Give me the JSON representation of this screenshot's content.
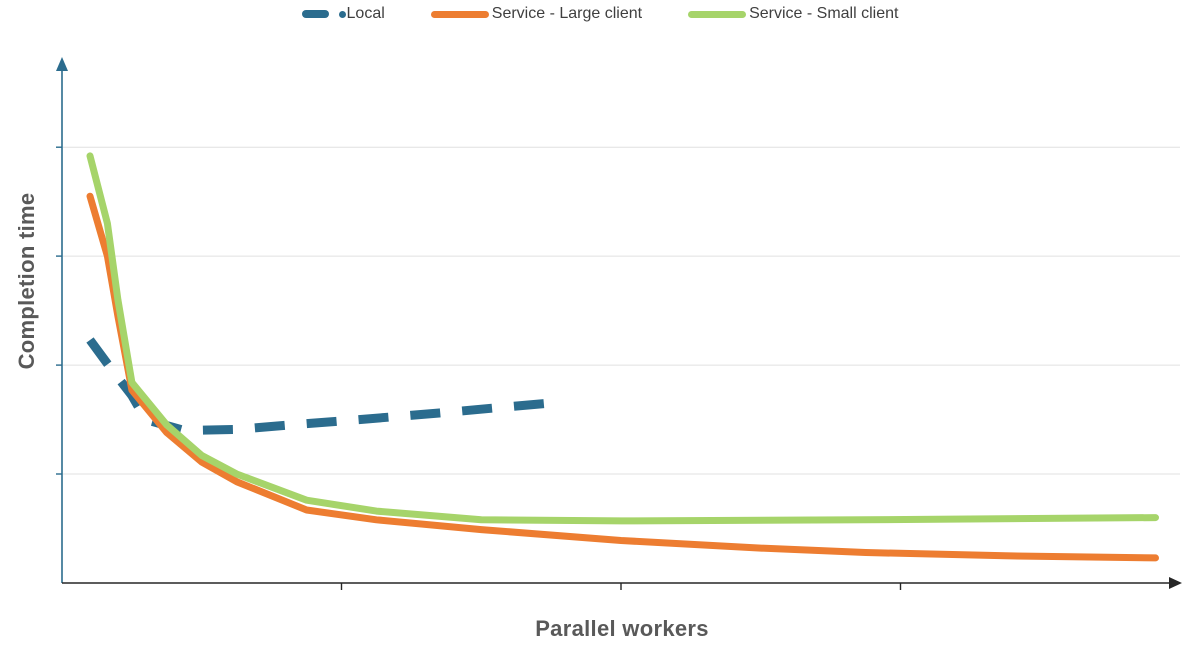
{
  "chart_data": {
    "type": "line",
    "title": "",
    "xlabel": "Parallel workers",
    "ylabel": "Completion time",
    "tick_labels": "none (both axes unlabeled)",
    "xlim": [
      0,
      32
    ],
    "ylim": [
      0,
      4.8
    ],
    "x_ticks": [
      8,
      16,
      24
    ],
    "y_gridlines": [
      1,
      2,
      3,
      4
    ],
    "grid": true,
    "legend_position": "top-center",
    "series": [
      {
        "name": "Local",
        "color": "#2B6C8E",
        "style": "dashed",
        "x": [
          0.8,
          1.4,
          2.0,
          2.4,
          3.5,
          5.0,
          6.5,
          8.5,
          10.8,
          12.5,
          14.3
        ],
        "y": [
          2.23,
          1.97,
          1.72,
          1.5,
          1.4,
          1.41,
          1.45,
          1.5,
          1.56,
          1.61,
          1.66
        ]
      },
      {
        "name": "Service - Large client",
        "color": "#ED7D31",
        "style": "solid",
        "x": [
          0.8,
          1.3,
          1.6,
          2.0,
          3.0,
          4.0,
          5.0,
          7.0,
          9.0,
          12.0,
          16.0,
          20.0,
          23.0,
          27.0,
          31.3
        ],
        "y": [
          3.55,
          3.0,
          2.45,
          1.77,
          1.38,
          1.11,
          0.93,
          0.67,
          0.58,
          0.49,
          0.39,
          0.32,
          0.28,
          0.25,
          0.23
        ]
      },
      {
        "name": "Service - Small client",
        "color": "#A6D46A",
        "style": "solid",
        "x": [
          0.8,
          1.3,
          1.6,
          2.0,
          3.0,
          4.0,
          5.0,
          7.0,
          9.0,
          12.0,
          16.0,
          23.0,
          31.3
        ],
        "y": [
          3.92,
          3.3,
          2.6,
          1.84,
          1.45,
          1.17,
          1.0,
          0.76,
          0.66,
          0.58,
          0.57,
          0.58,
          0.6
        ]
      }
    ]
  },
  "colors": {
    "axis_y": "#2B6C8E",
    "axis_x": "#262626",
    "gridline": "#E0E0E0",
    "label": "#595959",
    "legend_text": "#3F3F3F",
    "background": "#FFFFFF"
  }
}
